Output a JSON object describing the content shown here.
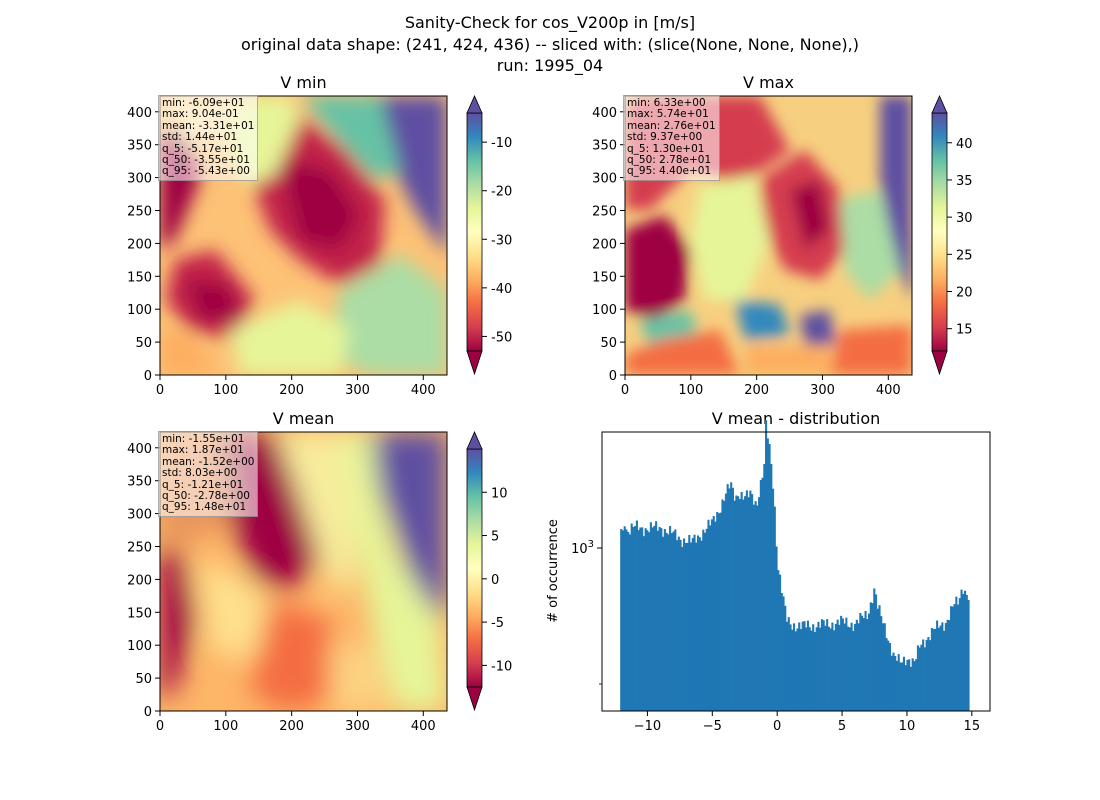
{
  "figure": {
    "title_lines": [
      "Sanity-Check for cos_V200p in [m/s]",
      "original data shape: (241, 424, 436) -- sliced with: (slice(None, None, None),)",
      "run: 1995_04"
    ]
  },
  "panels": {
    "vmin": {
      "title": "V min",
      "stats": [
        "min: -6.09e+01",
        "max: 9.04e-01",
        "mean: -3.31e+01",
        "std: 1.44e+01",
        "q_5: -5.17e+01",
        "q_50: -3.55e+01",
        "q_95: -5.43e+00"
      ],
      "colorbar_ticks": [
        "-10",
        "-20",
        "-30",
        "-40",
        "-50"
      ]
    },
    "vmax": {
      "title": "V max",
      "stats": [
        "min: 6.33e+00",
        "max: 5.74e+01",
        "mean: 2.76e+01",
        "std: 9.37e+00",
        "q_5: 1.30e+01",
        "q_50: 2.78e+01",
        "q_95: 4.40e+01"
      ],
      "colorbar_ticks": [
        "40",
        "35",
        "30",
        "25",
        "20",
        "15"
      ]
    },
    "vmean": {
      "title": "V mean",
      "stats": [
        "min: -1.55e+01",
        "max: 1.87e+01",
        "mean: -1.52e+00",
        "std: 8.03e+00",
        "q_5: -1.21e+01",
        "q_50: -2.78e+00",
        "q_95: 1.48e+01"
      ],
      "colorbar_ticks": [
        "10",
        "5",
        "0",
        "-5",
        "-10"
      ]
    },
    "hist": {
      "title": "V mean - distribution",
      "ylabel": "# of occurrence",
      "ytick_label": "10^3"
    }
  },
  "map_axes": {
    "xticks": [
      "0",
      "100",
      "200",
      "300",
      "400"
    ],
    "yticks": [
      "400",
      "350",
      "300",
      "250",
      "200",
      "150",
      "100",
      "50",
      "0"
    ]
  },
  "colormap": "Spectral",
  "bar_color": "#1f77b4",
  "chart_data": [
    {
      "type": "heatmap",
      "title": "V min",
      "x_range": [
        0,
        436
      ],
      "y_range": [
        0,
        424
      ],
      "colorbar_range": [
        -53,
        -4
      ],
      "colorbar_ticks": [
        -10,
        -20,
        -30,
        -40,
        -50
      ],
      "colormap": "Spectral",
      "extend": "both"
    },
    {
      "type": "heatmap",
      "title": "V max",
      "x_range": [
        0,
        436
      ],
      "y_range": [
        0,
        424
      ],
      "colorbar_range": [
        12,
        44
      ],
      "colorbar_ticks": [
        40,
        35,
        30,
        25,
        20,
        15
      ],
      "colormap": "Spectral",
      "extend": "both"
    },
    {
      "type": "heatmap",
      "title": "V mean",
      "x_range": [
        0,
        436
      ],
      "y_range": [
        0,
        424
      ],
      "colorbar_range": [
        -12.5,
        15
      ],
      "colorbar_ticks": [
        10,
        5,
        0,
        -5,
        -10
      ],
      "colormap": "Spectral",
      "extend": "both"
    },
    {
      "type": "bar",
      "title": "V mean - distribution",
      "ylabel": "# of occurrence",
      "xlabel": "",
      "y_scale": "log",
      "xlim": [
        -13.5,
        16.4
      ],
      "xticks": [
        -10,
        -5,
        0,
        5,
        10,
        15
      ],
      "bins_x_start": -12.1,
      "bins_x_end": 14.8,
      "profile_x": [
        -12.1,
        -11.9,
        -11.8,
        -11.6,
        -11.0,
        -10.0,
        -9.0,
        -8.0,
        -7.5,
        -6.6,
        -6.0,
        -5.0,
        -4.5,
        -4.0,
        -3.6,
        -3.2,
        -3.0,
        -2.5,
        -2.0,
        -1.6,
        -1.4,
        -1.0,
        -0.9,
        -0.6,
        -0.3,
        0.0,
        0.3,
        0.7,
        1.0,
        2.0,
        3.0,
        4.0,
        5.0,
        6.0,
        7.0,
        7.5,
        7.7,
        8.0,
        8.5,
        9.0,
        9.5,
        10.0,
        10.6,
        11.0,
        12.0,
        13.0,
        13.6,
        14.0,
        14.3,
        14.5,
        14.8
      ],
      "profile_y": [
        1200,
        1150,
        1330,
        1160,
        1200,
        1190,
        1200,
        1130,
        1090,
        1050,
        1120,
        1250,
        1400,
        1600,
        1740,
        1550,
        1650,
        1560,
        1600,
        1470,
        1650,
        2060,
        3000,
        2400,
        1700,
        900,
        710,
        530,
        510,
        500,
        505,
        510,
        520,
        510,
        560,
        700,
        600,
        540,
        460,
        380,
        360,
        380,
        360,
        420,
        480,
        520,
        600,
        620,
        720,
        680,
        650
      ]
    }
  ]
}
